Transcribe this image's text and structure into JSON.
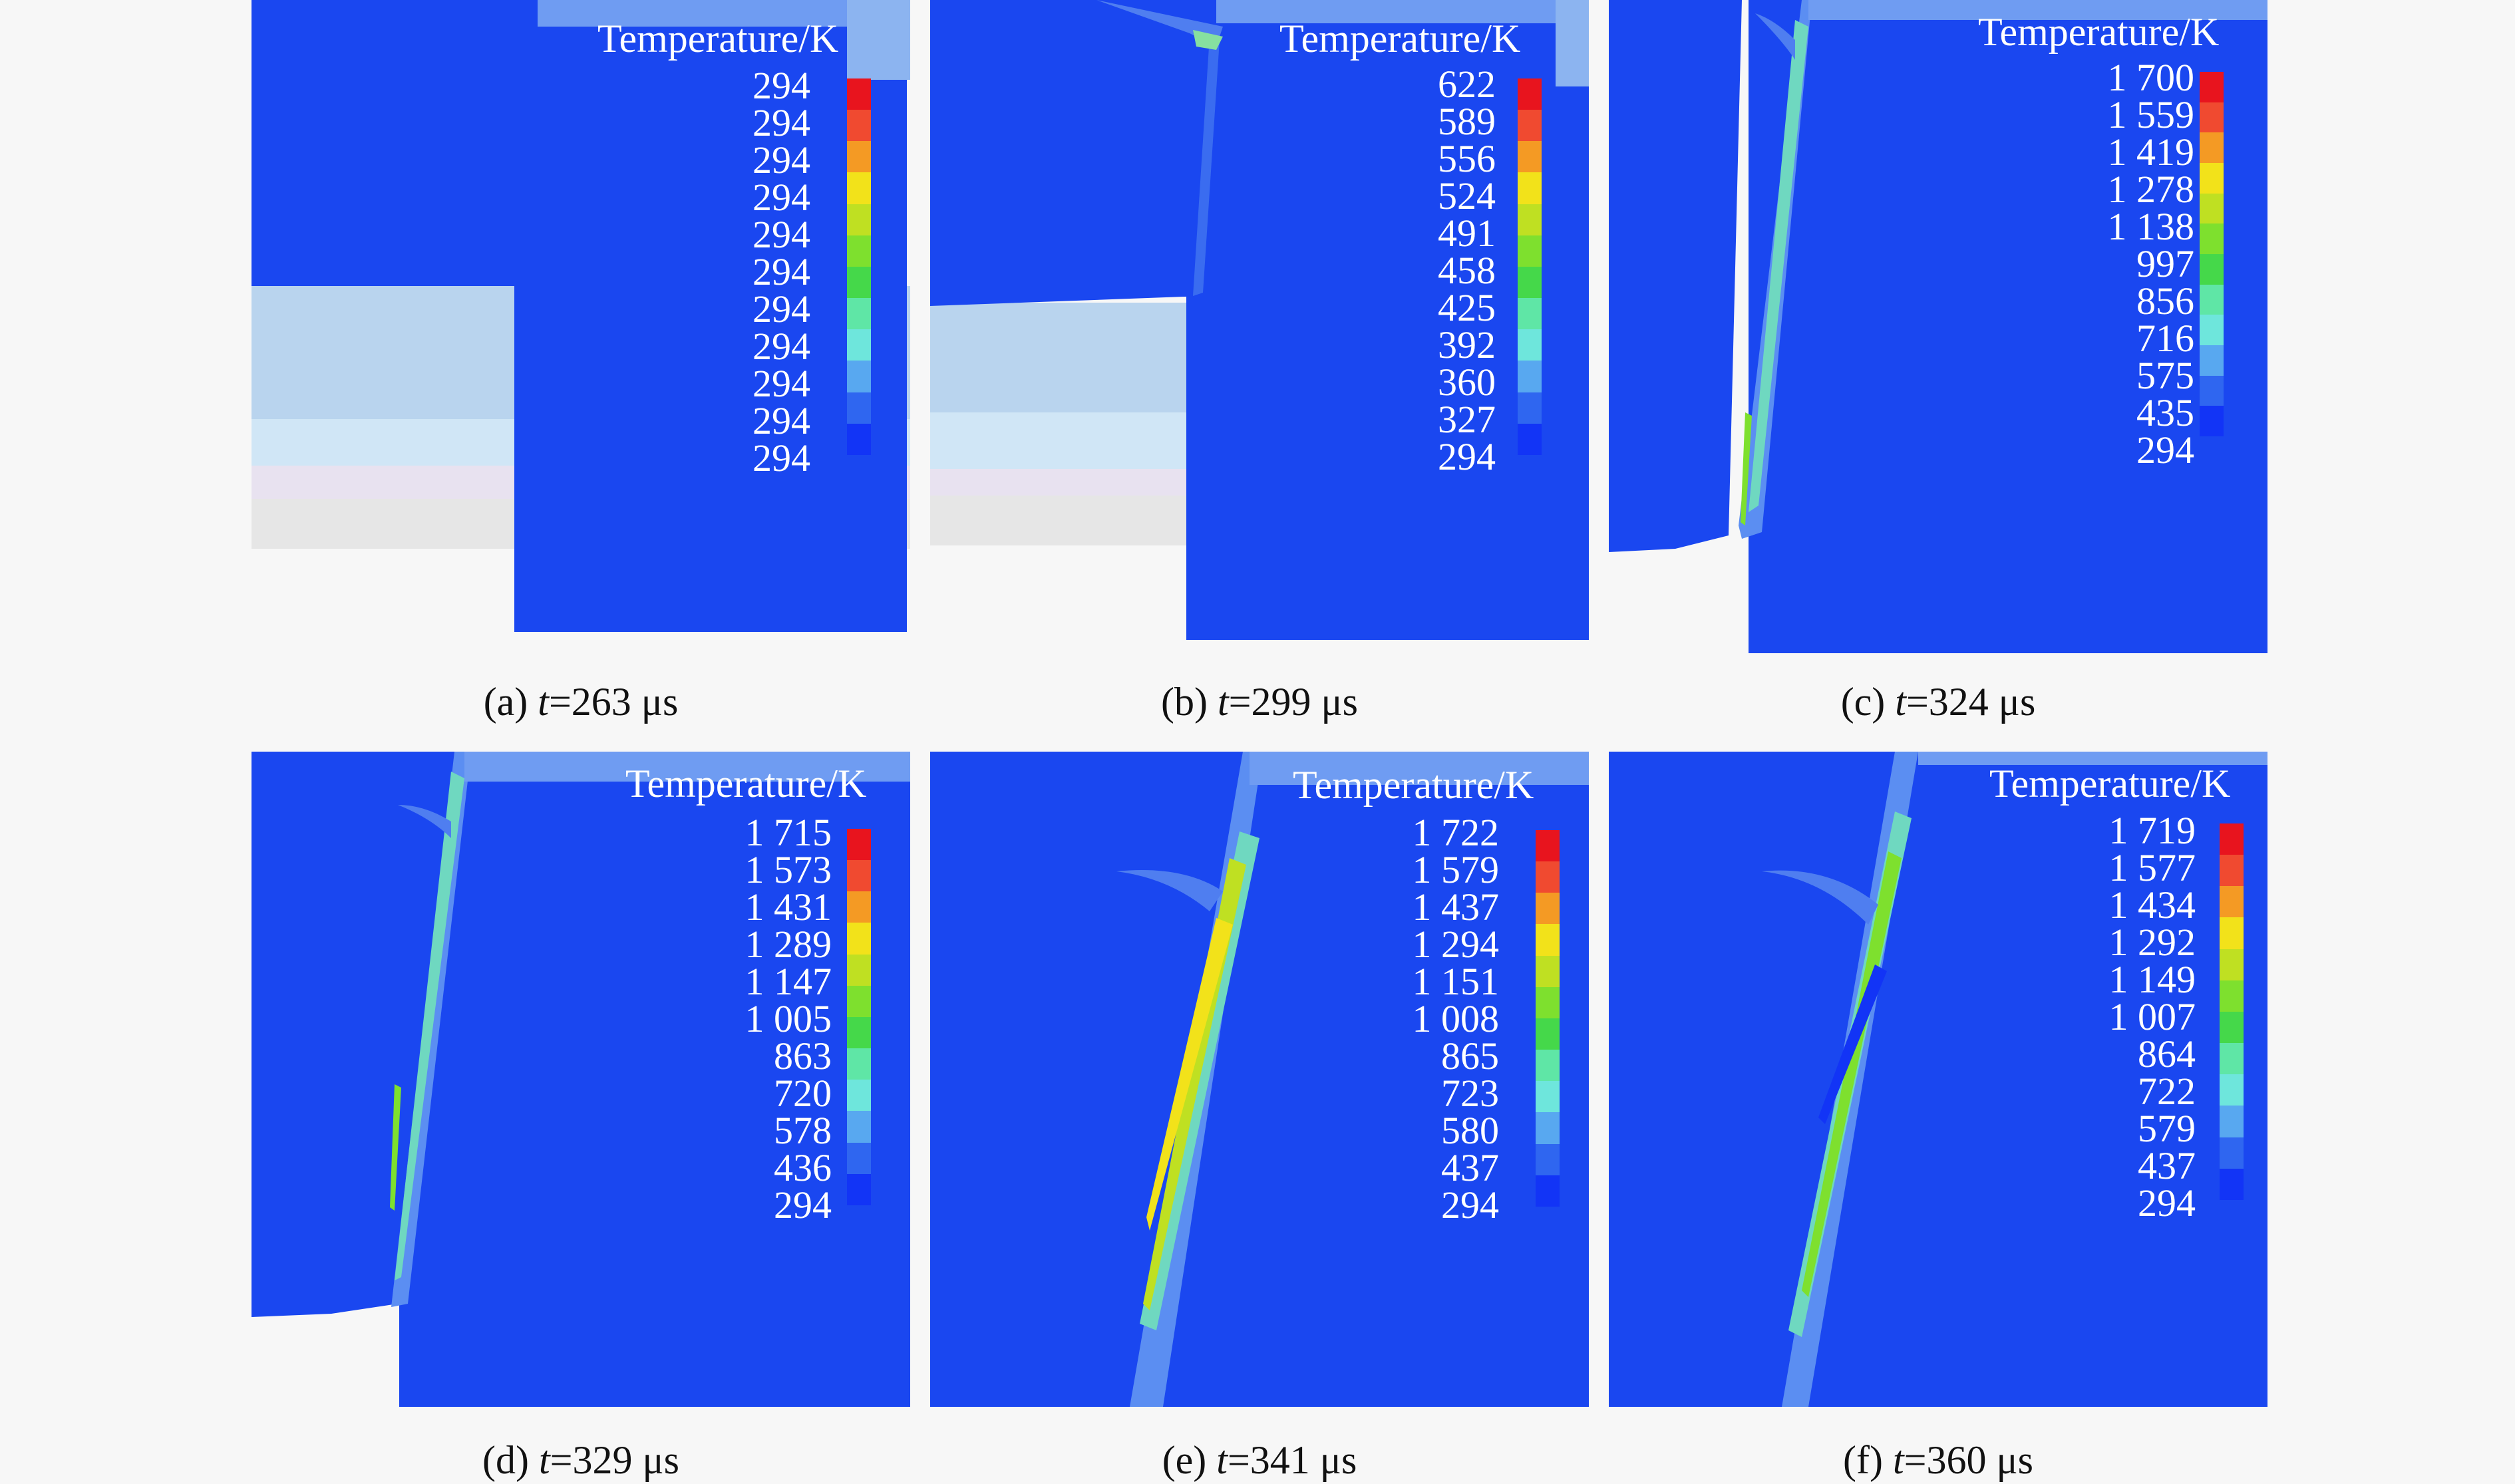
{
  "colors": {
    "blue": "#1a47f0",
    "page_background": "#f7f7f7",
    "legend": [
      "#1234f6",
      "#2f66f0",
      "#58a8f0",
      "#6ee6dc",
      "#5fe6a6",
      "#45d84a",
      "#7ee02e",
      "#bfe022",
      "#f2e21a",
      "#f49a24",
      "#f04a30",
      "#e8141e"
    ]
  },
  "panels": [
    {
      "id": "a",
      "legend_title": "Temperature/K",
      "legend_values": [
        "294",
        "294",
        "294",
        "294",
        "294",
        "294",
        "294",
        "294",
        "294",
        "294",
        "294"
      ],
      "caption_prefix": "(a) ",
      "caption_var": "t",
      "caption_value": "=263 μs"
    },
    {
      "id": "b",
      "legend_title": "Temperature/K",
      "legend_values": [
        "622",
        "589",
        "556",
        "524",
        "491",
        "458",
        "425",
        "392",
        "360",
        "327",
        "294"
      ],
      "caption_prefix": "(b) ",
      "caption_var": "t",
      "caption_value": "=299 μs"
    },
    {
      "id": "c",
      "legend_title": "Temperature/K",
      "legend_values": [
        "1 700",
        "1 559",
        "1 419",
        "1 278",
        "1 138",
        "997",
        "856",
        "716",
        "575",
        "435",
        "294"
      ],
      "caption_prefix": "(c) ",
      "caption_var": "t",
      "caption_value": "=324 μs"
    },
    {
      "id": "d",
      "legend_title": "Temperature/K",
      "legend_values": [
        "1 715",
        "1 573",
        "1 431",
        "1 289",
        "1 147",
        "1 005",
        "863",
        "720",
        "578",
        "436",
        "294"
      ],
      "caption_prefix": "(d) ",
      "caption_var": "t",
      "caption_value": "=329 μs"
    },
    {
      "id": "e",
      "legend_title": "Temperature/K",
      "legend_values": [
        "1 722",
        "1 579",
        "1 437",
        "1 294",
        "1 151",
        "1 008",
        "865",
        "723",
        "580",
        "437",
        "294"
      ],
      "caption_prefix": "(e) ",
      "caption_var": "t",
      "caption_value": "=341 μs"
    },
    {
      "id": "f",
      "legend_title": "Temperature/K",
      "legend_values": [
        "1 719",
        "1 577",
        "1 434",
        "1 292",
        "1 149",
        "1 007",
        "864",
        "722",
        "579",
        "437",
        "294"
      ],
      "caption_prefix": "(f) ",
      "caption_var": "t",
      "caption_value": "=360 μs"
    }
  ]
}
